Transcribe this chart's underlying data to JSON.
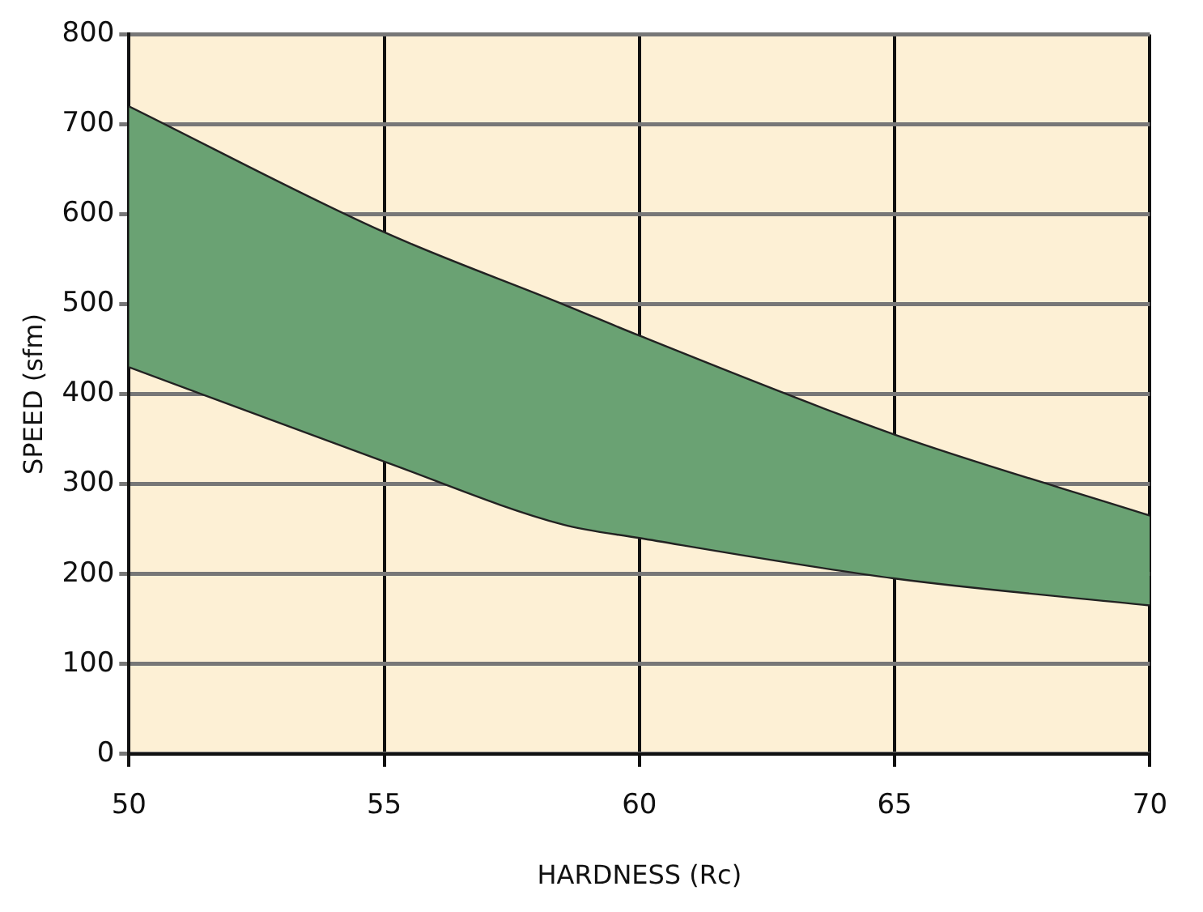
{
  "chart_data": {
    "type": "area",
    "xlabel": "HARDNESS (Rc)",
    "ylabel": "SPEED (sfm)",
    "xlim": [
      50,
      70
    ],
    "xticks": [
      50,
      55,
      60,
      65,
      70
    ],
    "ylim": [
      0,
      800
    ],
    "yticks": [
      0,
      100,
      200,
      300,
      400,
      500,
      600,
      700,
      800
    ],
    "grid": true,
    "legend": false,
    "series": [
      {
        "type": "line",
        "color": "#222222",
        "x": [
          50,
          55,
          58.5,
          60,
          65,
          70
        ],
        "values": [
          430,
          325,
          255,
          240,
          195,
          165
        ]
      },
      {
        "color": "#6aa273",
        "x": [
          50,
          55,
          58.5,
          60,
          65,
          70
        ],
        "values": [
          720,
          580,
          500,
          465,
          355,
          265
        ]
      }
    ]
  }
}
